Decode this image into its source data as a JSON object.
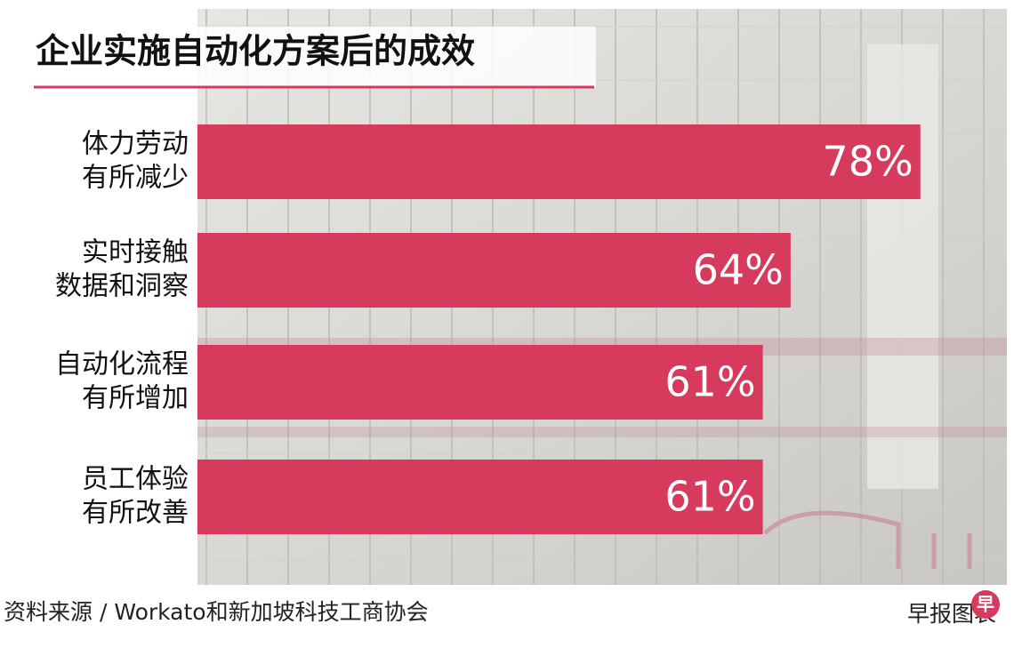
{
  "chart_data": {
    "type": "bar",
    "orientation": "horizontal",
    "title": "企业实施自动化方案后的成效",
    "categories": [
      [
        "体力劳动",
        "有所减少"
      ],
      [
        "实时接触",
        "数据和洞察"
      ],
      [
        "自动化流程",
        "有所增加"
      ],
      [
        "员工体验",
        "有所改善"
      ]
    ],
    "values": [
      78,
      64,
      61,
      61
    ],
    "value_labels": [
      "78%",
      "64%",
      "61%",
      "61%"
    ],
    "color": "#d63a5c",
    "source": "资料来源 / Workato和新加坡科技工商协会",
    "credit": "早报图表",
    "logo": "早"
  }
}
